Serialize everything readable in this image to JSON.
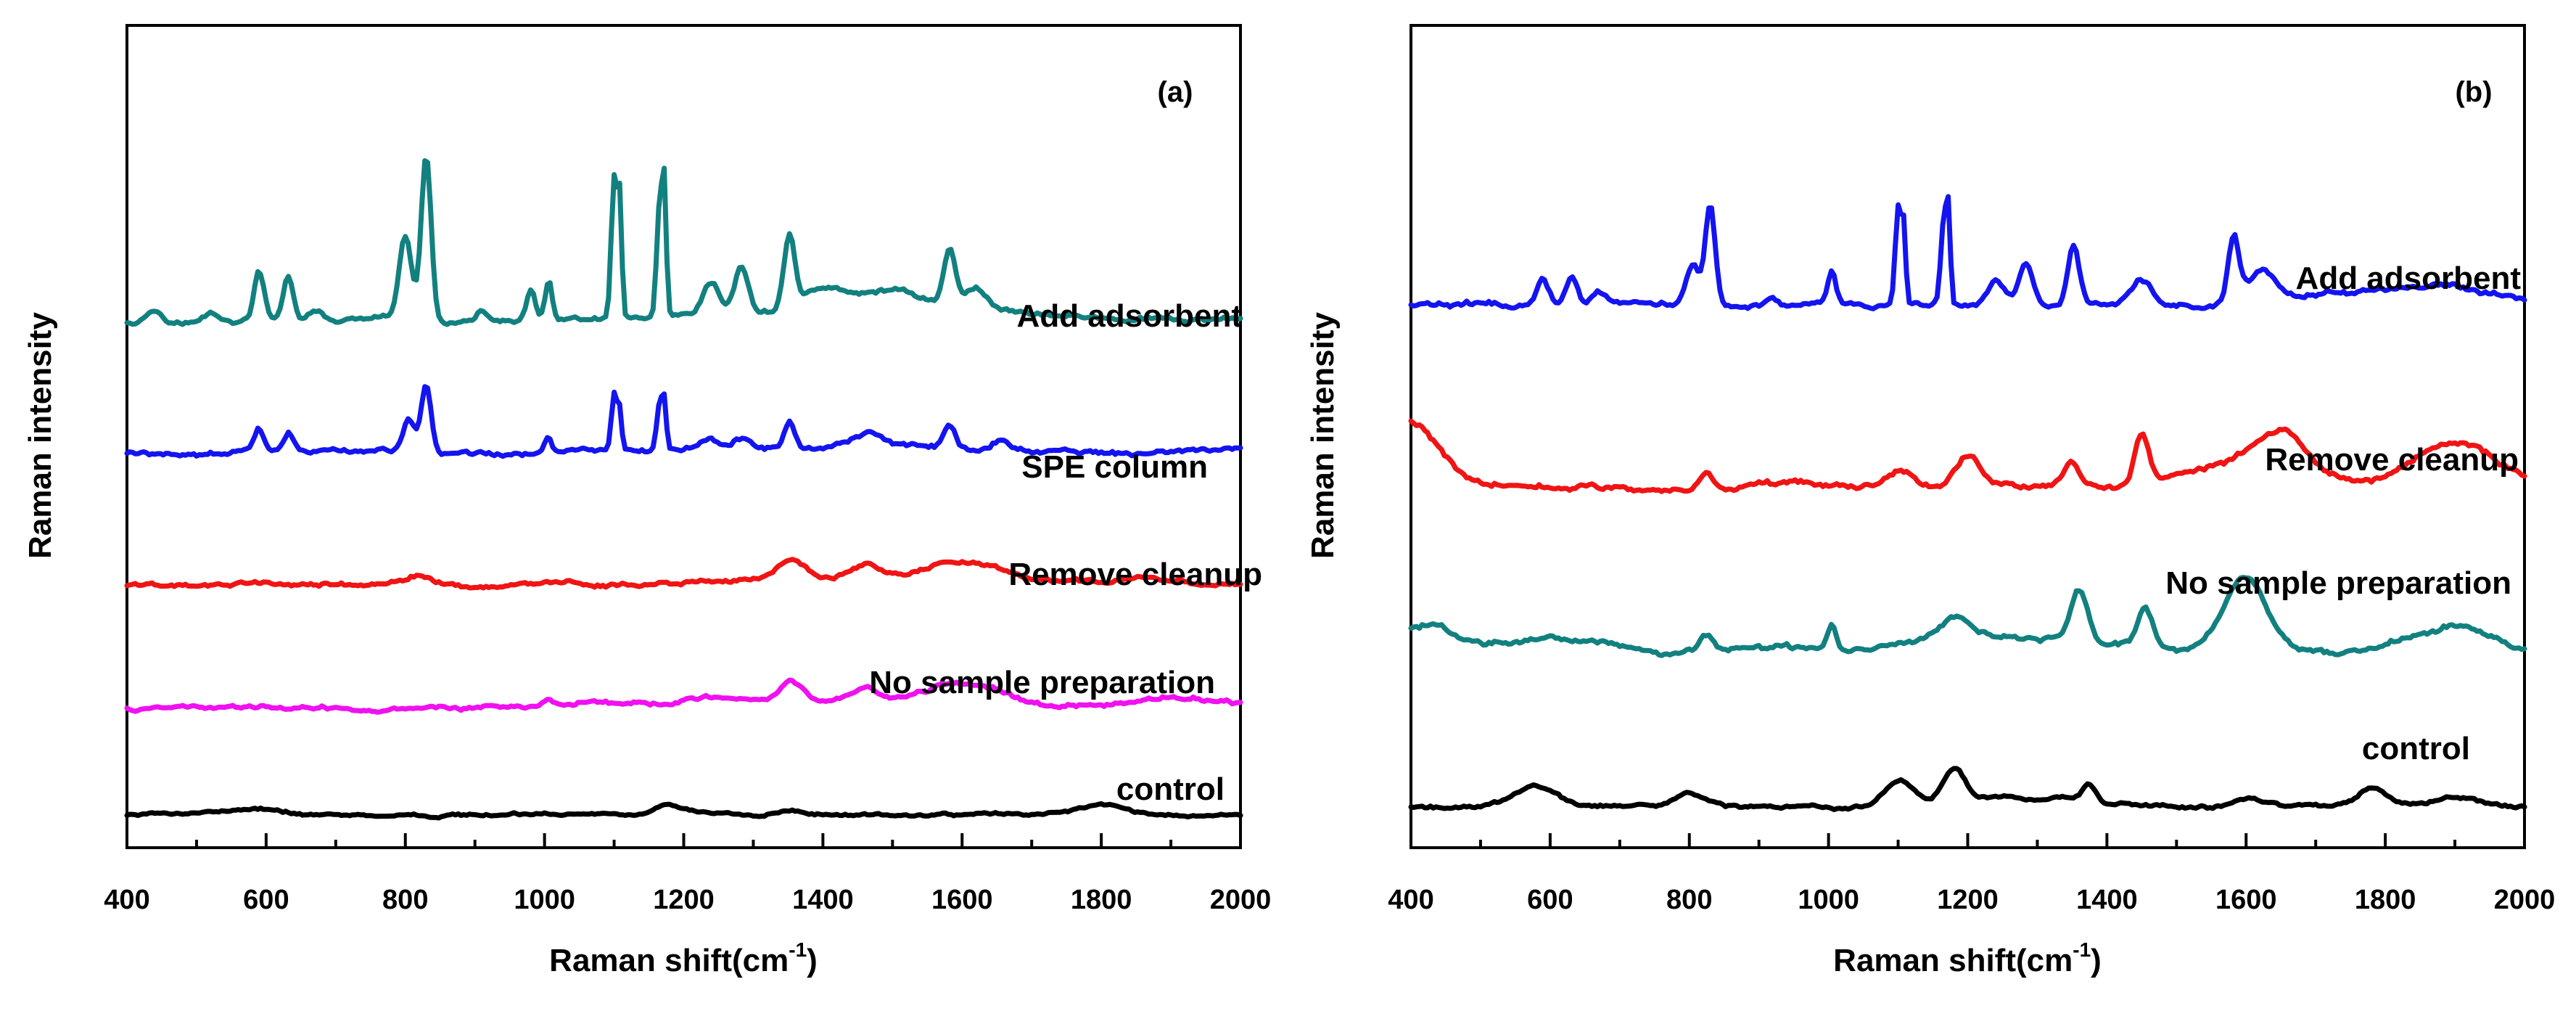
{
  "chart_data": [
    {
      "type": "line",
      "panel_label": "(a)",
      "xlabel_main": "Raman shift(cm",
      "xlabel_sup": "-1",
      "xlabel_tail": ")",
      "ylabel": "Raman intensity",
      "xlim": [
        400,
        2000
      ],
      "ylim": [
        0,
        100
      ],
      "x_ticks": [
        400,
        600,
        800,
        1000,
        1200,
        1400,
        1600,
        1800,
        2000
      ],
      "x_tick_labels": [
        "400",
        "600",
        "800",
        "1000",
        "1200",
        "1400",
        "1600",
        "1800",
        "2000"
      ],
      "series": [
        {
          "name": "Add adsorbent",
          "color": "#138080",
          "offset": 64,
          "noise": 0.35,
          "peaks": [
            [
              440,
              1.5,
              12
            ],
            [
              520,
              1,
              8
            ],
            [
              590,
              6,
              7
            ],
            [
              632,
              5.5,
              7
            ],
            [
              670,
              1.2,
              10
            ],
            [
              800,
              10,
              9
            ],
            [
              830,
              20,
              7
            ],
            [
              910,
              1,
              8
            ],
            [
              980,
              3.5,
              6
            ],
            [
              1006,
              5,
              5
            ],
            [
              1100,
              17,
              4
            ],
            [
              1108,
              14,
              3
            ],
            [
              1165,
              13,
              4
            ],
            [
              1172,
              15,
              3
            ],
            [
              1240,
              4,
              12
            ],
            [
              1283,
              6,
              10
            ],
            [
              1352,
              9,
              8
            ],
            [
              1400,
              2,
              25
            ],
            [
              1500,
              1,
              30
            ],
            [
              1582,
              6.5,
              8
            ],
            [
              1620,
              2,
              15
            ]
          ],
          "broad": [
            [
              1450,
              2,
              100
            ],
            [
              1600,
              1.5,
              120
            ]
          ],
          "points": []
        },
        {
          "name": "SPE column",
          "color": "#1414f0",
          "offset": 48,
          "noise": 0.35,
          "peaks": [
            [
              590,
              2.5,
              7
            ],
            [
              632,
              2.2,
              7
            ],
            [
              805,
              4,
              9
            ],
            [
              830,
              8,
              7
            ],
            [
              1005,
              2,
              6
            ],
            [
              1100,
              7,
              4
            ],
            [
              1108,
              5,
              3
            ],
            [
              1165,
              5.5,
              4
            ],
            [
              1172,
              6,
              3
            ],
            [
              1240,
              1.2,
              12
            ],
            [
              1283,
              1.5,
              12
            ],
            [
              1352,
              3.5,
              8
            ],
            [
              1460,
              1.5,
              25
            ],
            [
              1582,
              2.5,
              8
            ],
            [
              1655,
              1.2,
              10
            ]
          ],
          "broad": [
            [
              1500,
              1,
              100
            ]
          ],
          "points": []
        },
        {
          "name": "Remove cleanup",
          "color": "#f01414",
          "offset": 32,
          "noise": 0.3,
          "peaks": [
            [
              820,
              1,
              15
            ],
            [
              1355,
              2,
              18
            ],
            [
              1460,
              1.5,
              20
            ]
          ],
          "broad": [
            [
              1600,
              2.5,
              60
            ],
            [
              1400,
              1,
              120
            ],
            [
              1850,
              0.7,
              80
            ]
          ],
          "points": []
        },
        {
          "name": "No sample preparation",
          "color": "#f010f0",
          "offset": 17,
          "noise": 0.3,
          "peaks": [
            [
              1005,
              1,
              8
            ],
            [
              1355,
              2,
              15
            ],
            [
              1460,
              1.5,
              20
            ]
          ],
          "broad": [
            [
              1600,
              3,
              60
            ],
            [
              1300,
              1,
              150
            ],
            [
              1920,
              1,
              70
            ]
          ],
          "points": []
        },
        {
          "name": "control",
          "color": "#000000",
          "offset": 4,
          "noise": 0.2,
          "peaks": [
            [
              1180,
              1,
              20
            ],
            [
              1350,
              0.7,
              20
            ],
            [
              1800,
              1,
              30
            ]
          ],
          "broad": [
            [
              580,
              0.8,
              40
            ]
          ],
          "points": []
        }
      ]
    },
    {
      "type": "line",
      "panel_label": "(b)",
      "xlabel_main": "Raman shift(cm",
      "xlabel_sup": "-1",
      "xlabel_tail": ")",
      "ylabel": "Raman intensity",
      "xlim": [
        400,
        2000
      ],
      "ylim": [
        0,
        100
      ],
      "x_ticks": [
        400,
        600,
        800,
        1000,
        1200,
        1400,
        1600,
        1800,
        2000
      ],
      "x_tick_labels": [
        "400",
        "600",
        "800",
        "1000",
        "1200",
        "1400",
        "1600",
        "1800",
        "2000"
      ],
      "series": [
        {
          "name": "Add adsorbent",
          "color": "#1414f0",
          "offset": 66,
          "noise": 0.4,
          "peaks": [
            [
              590,
              3,
              8
            ],
            [
              630,
              3.5,
              8
            ],
            [
              670,
              1.5,
              10
            ],
            [
              805,
              5,
              9
            ],
            [
              830,
              12,
              7
            ],
            [
              920,
              1,
              8
            ],
            [
              1005,
              4,
              6
            ],
            [
              1100,
              12,
              4
            ],
            [
              1108,
              9,
              3
            ],
            [
              1165,
              10,
              4
            ],
            [
              1172,
              11,
              3
            ],
            [
              1240,
              3,
              12
            ],
            [
              1283,
              5,
              10
            ],
            [
              1352,
              7,
              8
            ],
            [
              1450,
              3,
              15
            ],
            [
              1582,
              8,
              8
            ],
            [
              1620,
              4,
              20
            ]
          ],
          "broad": [
            [
              1870,
              2,
              80
            ],
            [
              1730,
              1,
              60
            ]
          ],
          "points": []
        },
        {
          "name": "Remove cleanup",
          "color": "#f01414",
          "offset": 44,
          "noise": 0.4,
          "peaks": [
            [
              825,
              2.5,
              10
            ],
            [
              1100,
              2,
              20
            ],
            [
              1200,
              4,
              18
            ],
            [
              1350,
              3,
              10
            ],
            [
              1450,
              6,
              10
            ],
            [
              1650,
              7,
              40
            ],
            [
              1900,
              5,
              60
            ]
          ],
          "broad": [
            [
              400,
              8,
              40
            ],
            [
              1550,
              2,
              60
            ]
          ],
          "points": []
        },
        {
          "name": "No sample preparation",
          "color": "#138080",
          "offset": 24,
          "noise": 0.4,
          "peaks": [
            [
              825,
              2,
              10
            ],
            [
              1005,
              3,
              6
            ],
            [
              1180,
              3,
              25
            ],
            [
              1360,
              6,
              12
            ],
            [
              1455,
              5,
              12
            ],
            [
              1600,
              9,
              30
            ],
            [
              1900,
              3,
              50
            ]
          ],
          "broad": [
            [
              420,
              3,
              40
            ],
            [
              600,
              2,
              60
            ],
            [
              1300,
              2,
              80
            ]
          ],
          "points": []
        },
        {
          "name": "control",
          "color": "#000000",
          "offset": 5,
          "noise": 0.25,
          "peaks": [
            [
              580,
              2.5,
              30
            ],
            [
              800,
              1.5,
              20
            ],
            [
              1100,
              3,
              20
            ],
            [
              1180,
              4,
              15
            ],
            [
              1375,
              2,
              10
            ],
            [
              1600,
              1,
              20
            ],
            [
              1780,
              2.5,
              20
            ],
            [
              1900,
              1,
              30
            ]
          ],
          "broad": [
            [
              1250,
              1,
              100
            ]
          ],
          "points": []
        }
      ]
    }
  ]
}
